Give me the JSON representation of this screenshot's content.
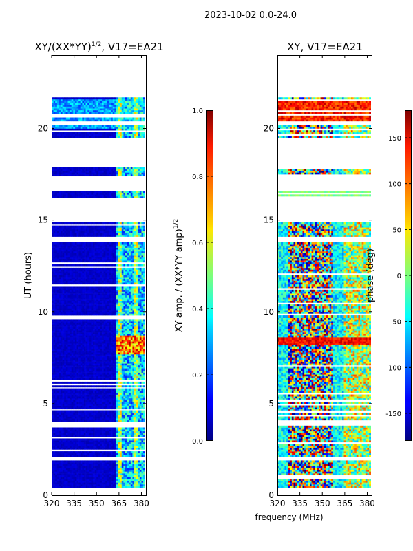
{
  "suptitle": "2023-10-02 0.0-24.0",
  "chart_data": [
    {
      "type": "heatmap",
      "title": "XY/(XX*YY)^1/2, V17=EA21",
      "title_main": "XY/(XX*YY)",
      "title_sup": "1/2",
      "title_tail": ", V17=EA21",
      "xlabel": "",
      "ylabel": "UT (hours)",
      "xlim": [
        320,
        383
      ],
      "ylim": [
        0,
        24
      ],
      "xticks": [
        320,
        335,
        350,
        365,
        380
      ],
      "yticks": [
        0,
        5,
        10,
        15,
        20
      ],
      "colorbar": {
        "label": "XY amp. / (XX*YY amp)^1/2",
        "label_main": "XY amp. / (XX*YY amp)",
        "label_sup": "1/2",
        "range": [
          0.0,
          1.0
        ],
        "ticks": [
          "0.0",
          "0.2",
          "0.4",
          "0.6",
          "0.8",
          "1.0"
        ],
        "cmap": "jet"
      },
      "data_gaps_hours": [
        [
          21.75,
          24.0
        ],
        [
          20.2,
          20.4
        ],
        [
          19.5,
          17.9
        ],
        [
          17.35,
          16.6
        ],
        [
          16.2,
          14.85
        ],
        [
          14.05,
          13.8
        ],
        [
          4.0,
          3.8
        ],
        [
          2.1,
          1.95
        ],
        [
          0.4,
          0.0
        ]
      ],
      "notes": "Mostly low amplitude (dark blue); brighter features in 362-382 MHz; strong band near 8 UT"
    },
    {
      "type": "heatmap",
      "title": "XY, V17=EA21",
      "xlabel": "frequency (MHz)",
      "ylabel": "",
      "xlim": [
        320,
        383
      ],
      "ylim": [
        0,
        24
      ],
      "xticks": [
        320,
        335,
        350,
        365,
        380
      ],
      "yticks": [
        0,
        5,
        10,
        15,
        20
      ],
      "colorbar": {
        "label": "phase (deg)",
        "range": [
          -180,
          180
        ],
        "ticks": [
          "-150",
          "-100",
          "-50",
          "0",
          "50",
          "100",
          "150"
        ],
        "cmap": "jet"
      },
      "notes": "Phase noisy across band; red/orange ridges near 20-21 UT and 8 UT"
    }
  ]
}
